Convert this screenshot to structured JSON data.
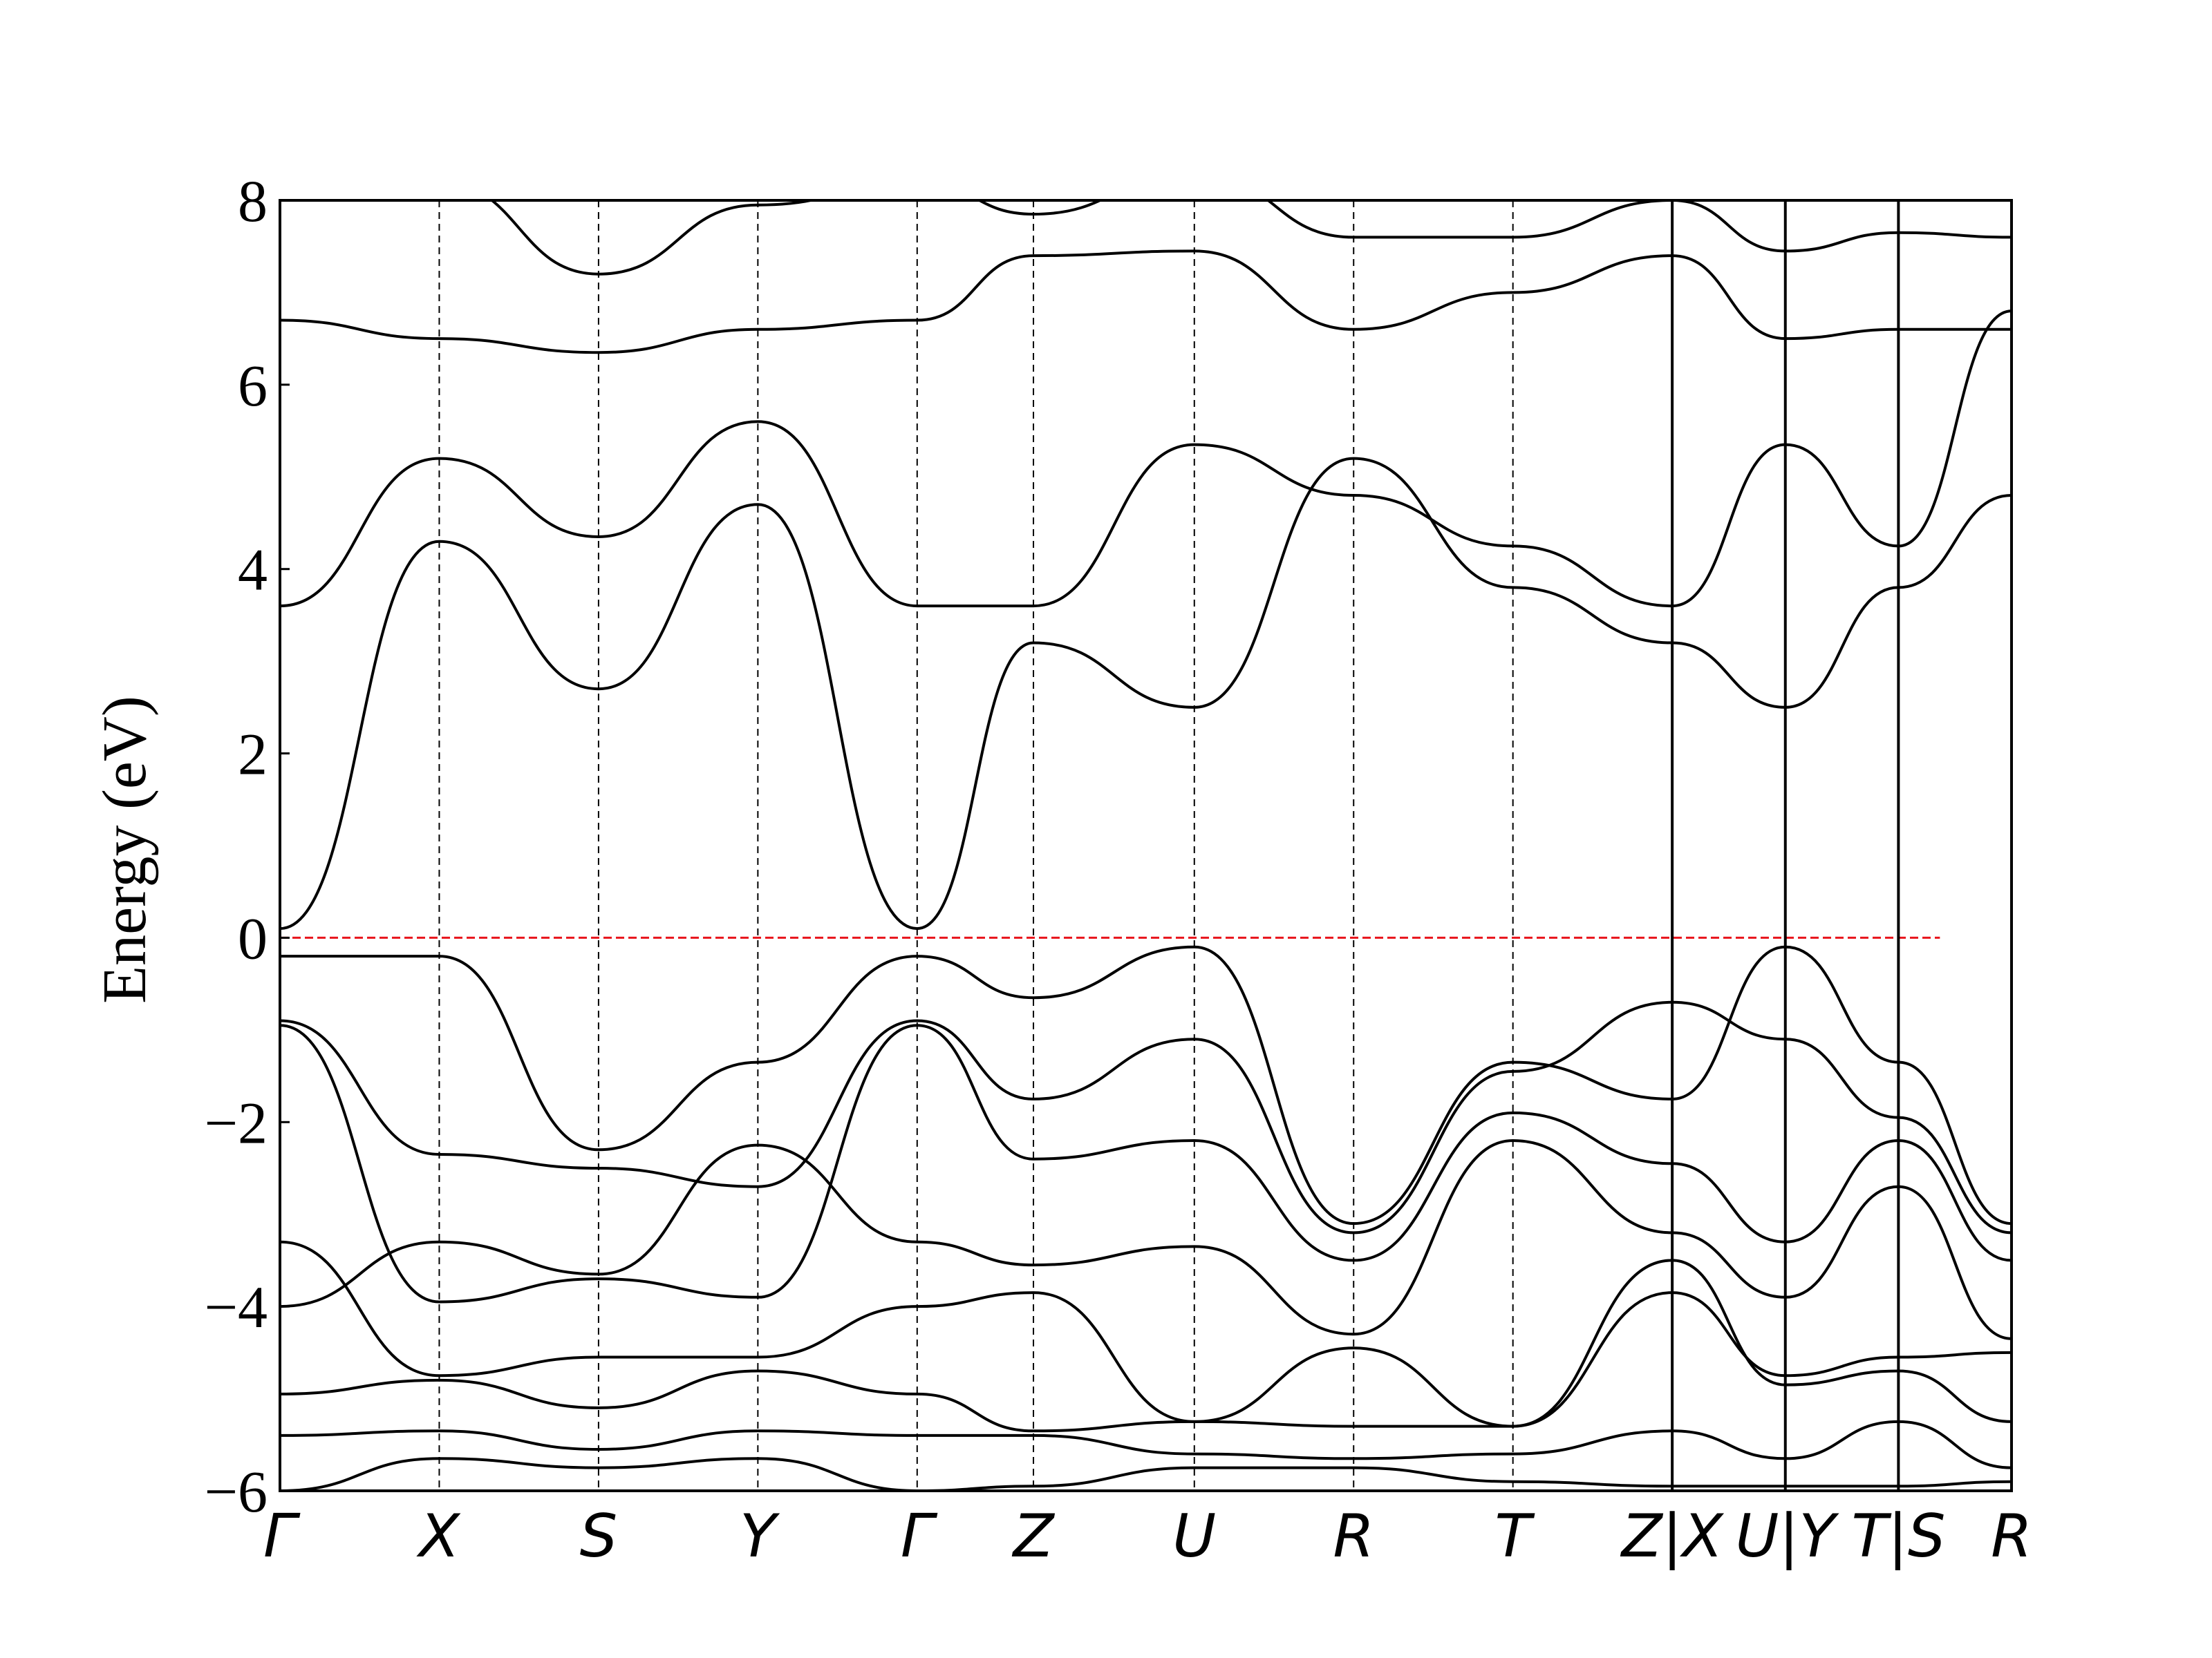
{
  "chart_data": {
    "type": "line",
    "title": "",
    "xlabel": "",
    "ylabel": "Energy (eV)",
    "ylim": [
      -6,
      8
    ],
    "yticks": [
      8,
      6,
      4,
      2,
      0,
      -2,
      -4,
      -6
    ],
    "ytick_labels": [
      "8",
      "6",
      "4",
      "2",
      "0",
      "−2",
      "−4",
      "−6"
    ],
    "fermi_level": 0,
    "fermi_color": "#e8141c",
    "band_color": "#000000",
    "x": [
      0,
      1,
      2,
      3,
      4,
      4.73,
      5.74,
      6.74,
      7.74,
      8.74,
      9.45,
      10.16,
      10.87
    ],
    "xtick_labels": [
      "Γ",
      "X",
      "S",
      "Y",
      "Γ",
      "Z",
      "U",
      "R",
      "T",
      "Z|X",
      "U|Y",
      "T|S",
      "R"
    ],
    "xlim": [
      0,
      10.87
    ],
    "panel_breaks": [
      8.74,
      9.45,
      10.16
    ],
    "series": [
      {
        "name": "band-1",
        "values": [
          0.1,
          4.3,
          2.7,
          4.7,
          0.1,
          3.2,
          2.5,
          5.2,
          3.8,
          3.2,
          2.5,
          3.8,
          4.8
        ]
      },
      {
        "name": "band-2",
        "values": [
          3.6,
          5.2,
          4.35,
          5.6,
          3.6,
          3.6,
          5.35,
          4.8,
          4.25,
          3.6,
          5.35,
          4.25,
          6.8
        ]
      },
      {
        "name": "band-3",
        "values": [
          6.7,
          6.5,
          6.35,
          6.6,
          6.7,
          7.4,
          7.45,
          6.6,
          7.0,
          7.4,
          6.5,
          6.6,
          6.6
        ]
      },
      {
        "name": "band-4",
        "values": [
          8.3,
          8.2,
          7.2,
          7.95,
          8.2,
          7.85,
          8.3,
          7.6,
          7.6,
          8.0,
          7.45,
          7.65,
          7.6
        ]
      },
      {
        "name": "band-5",
        "values": [
          -0.2,
          -0.2,
          -2.3,
          -1.35,
          -0.2,
          -0.65,
          -0.1,
          -3.1,
          -1.35,
          -1.75,
          -0.1,
          -1.35,
          -3.1
        ]
      },
      {
        "name": "band-6",
        "values": [
          -0.9,
          -2.35,
          -2.5,
          -2.7,
          -0.9,
          -1.75,
          -1.1,
          -3.2,
          -1.45,
          -0.7,
          -1.1,
          -1.95,
          -3.2
        ]
      },
      {
        "name": "band-7",
        "values": [
          -0.95,
          -3.95,
          -3.7,
          -3.9,
          -0.95,
          -2.4,
          -2.2,
          -3.5,
          -1.9,
          -2.45,
          -3.3,
          -2.2,
          -3.5
        ]
      },
      {
        "name": "band-8",
        "values": [
          -4.0,
          -3.3,
          -3.65,
          -2.25,
          -3.3,
          -3.55,
          -3.35,
          -4.3,
          -2.2,
          -3.2,
          -3.9,
          -2.7,
          -4.35
        ]
      },
      {
        "name": "band-9",
        "values": [
          -3.3,
          -4.75,
          -4.55,
          -4.55,
          -4.0,
          -3.85,
          -5.25,
          -4.45,
          -5.3,
          -3.85,
          -4.75,
          -4.55,
          -4.5
        ]
      },
      {
        "name": "band-10",
        "values": [
          -4.95,
          -4.8,
          -5.1,
          -4.7,
          -4.95,
          -5.35,
          -5.25,
          -5.3,
          -5.3,
          -3.5,
          -4.85,
          -4.7,
          -5.25
        ]
      },
      {
        "name": "band-11",
        "values": [
          -5.4,
          -5.35,
          -5.55,
          -5.35,
          -5.4,
          -5.4,
          -5.6,
          -5.65,
          -5.6,
          -5.35,
          -5.65,
          -5.25,
          -5.75
        ]
      },
      {
        "name": "band-12",
        "values": [
          -6.0,
          -5.65,
          -5.75,
          -5.65,
          -6.0,
          -5.95,
          -5.75,
          -5.75,
          -5.9,
          -5.95,
          -5.95,
          -5.95,
          -5.9
        ]
      }
    ]
  }
}
